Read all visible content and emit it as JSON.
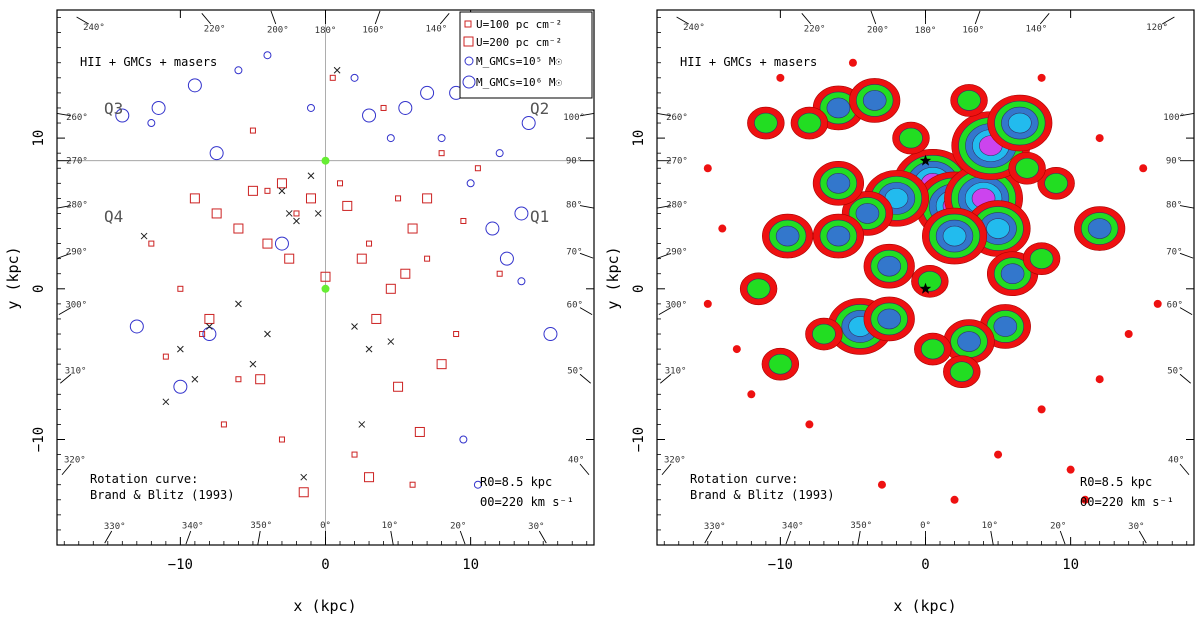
{
  "chart_data": [
    {
      "type": "scatter",
      "xlabel": "x (kpc)",
      "ylabel": "y (kpc)",
      "xlim": [
        -18.5,
        18.5
      ],
      "ylim": [
        -17,
        18.5
      ],
      "xticks": [
        -10,
        0,
        10
      ],
      "yticks": [
        -10,
        0,
        10
      ],
      "annotation_top": "HII + GMCs + masers",
      "quadrants": [
        "Q1",
        "Q2",
        "Q3",
        "Q4"
      ],
      "rotation_curve": [
        "Rotation curve:",
        "Brand & Blitz (1993)"
      ],
      "params": [
        "R0=8.5 kpc",
        "Θ0=220 km s⁻¹"
      ],
      "sun": {
        "x": 0,
        "y": 8.5
      },
      "galactic_center": {
        "x": 0,
        "y": 0
      },
      "longitude_labels": [
        "240°",
        "220°",
        "200°",
        "180°",
        "160°",
        "140°",
        "120°",
        "100°",
        "90°",
        "80°",
        "70°",
        "60°",
        "50°",
        "40°",
        "30°",
        "20°",
        "10°",
        "0°",
        "350°",
        "340°",
        "330°",
        "320°",
        "310°",
        "300°",
        "290°",
        "280°",
        "270°",
        "260°"
      ],
      "legend": {
        "position": "top-right",
        "entries": [
          "U=100 pc cm⁻²",
          "U=200 pc cm⁻²",
          "M_GMCs=10⁵ M☉",
          "M_GMCs=10⁶ M☉"
        ]
      },
      "series": [
        {
          "name": "U=200 pc cm⁻²",
          "marker": "square",
          "color": "#cc2222",
          "x": [
            -9,
            -7.5,
            -6,
            -5,
            -4,
            -3,
            -2.5,
            -1,
            0,
            1.5,
            2.5,
            3.5,
            4.5,
            5.5,
            6,
            7,
            8,
            -8,
            -4.5,
            6.5,
            5,
            3,
            -1.5
          ],
          "y": [
            6,
            5,
            4,
            6.5,
            3,
            7,
            2,
            6,
            0.8,
            5.5,
            2,
            -2,
            0,
            1,
            4,
            6,
            -5,
            -2,
            -6,
            -9.5,
            -6.5,
            -12.5,
            -13.5
          ]
        },
        {
          "name": "U=100 pc cm⁻²",
          "marker": "square",
          "color": "#cc2222",
          "x": [
            -12,
            -10,
            -8.5,
            -6,
            -4,
            -2,
            1,
            3,
            5,
            7,
            9,
            10.5,
            12,
            -11,
            -7,
            -3,
            2,
            6,
            9.5,
            -5,
            4,
            8,
            0.5
          ],
          "y": [
            3,
            0,
            -3,
            -6,
            6.5,
            5,
            7,
            3,
            6,
            2,
            -3,
            8,
            1,
            -4.5,
            -9,
            -10,
            -11,
            -13,
            4.5,
            10.5,
            12,
            9,
            14
          ]
        },
        {
          "name": "M_GMCs=10⁶ M☉",
          "marker": "circle",
          "color": "#3333cc",
          "x": [
            -14,
            -11.5,
            -9,
            -7.5,
            -3,
            3,
            5.5,
            7,
            9,
            11.5,
            12.5,
            14,
            -13,
            -10,
            -8,
            15.5,
            13.5
          ],
          "y": [
            11.5,
            12,
            13.5,
            9,
            3,
            11.5,
            12,
            13,
            13,
            4,
            2,
            11,
            -2.5,
            -6.5,
            -3,
            -3,
            5
          ]
        },
        {
          "name": "M_GMCs=10⁵ M☉",
          "marker": "circle",
          "color": "#3333cc",
          "x": [
            -12,
            -6,
            -4,
            -1,
            2,
            4.5,
            8,
            10,
            12,
            13.5,
            9.5,
            10.5
          ],
          "y": [
            11,
            14.5,
            15.5,
            12,
            14,
            10,
            10,
            7,
            9,
            0.5,
            -10,
            -13
          ]
        },
        {
          "name": "masers",
          "marker": "x",
          "color": "#222222",
          "x": [
            -11,
            -10,
            -8,
            -6,
            -5,
            -4,
            -3,
            -2.5,
            -2,
            -1,
            -0.5,
            2,
            3,
            4.5,
            -9,
            -12.5,
            -1.5,
            2.5,
            0.8
          ],
          "y": [
            -7.5,
            -4,
            -2.5,
            -1,
            -5,
            -3,
            6.5,
            5,
            4.5,
            7.5,
            5,
            -2.5,
            -4,
            -3.5,
            -6,
            3.5,
            -12.5,
            -9,
            14.5
          ]
        }
      ]
    },
    {
      "type": "heatmap",
      "xlabel": "x (kpc)",
      "ylabel": "y (kpc)",
      "xlim": [
        -18.5,
        18.5
      ],
      "ylim": [
        -17,
        18.5
      ],
      "xticks": [
        -10,
        0,
        10
      ],
      "yticks": [
        -10,
        0,
        10
      ],
      "annotation_top": "HII + GMCs + masers",
      "rotation_curve": [
        "Rotation curve:",
        "Brand & Blitz (1993)"
      ],
      "params": [
        "R0=8.5 kpc",
        "Θ0=220 km s⁻¹"
      ],
      "sun": {
        "x": 0,
        "y": 8.5
      },
      "galactic_center": {
        "x": 0,
        "y": 0
      },
      "contour_colors": [
        "#ee1111",
        "#22dd22",
        "#3377cc",
        "#22bbee",
        "#cc44ee"
      ],
      "blobs": [
        {
          "x": 0.5,
          "y": 7,
          "level": 5
        },
        {
          "x": 2,
          "y": 5.5,
          "level": 5
        },
        {
          "x": 4,
          "y": 6,
          "level": 5
        },
        {
          "x": -2,
          "y": 6,
          "level": 4
        },
        {
          "x": 4.5,
          "y": 9.5,
          "level": 5
        },
        {
          "x": 6.5,
          "y": 11,
          "level": 4
        },
        {
          "x": 5,
          "y": 4,
          "level": 4
        },
        {
          "x": 6,
          "y": 1,
          "level": 3
        },
        {
          "x": 5.5,
          "y": -2.5,
          "level": 3
        },
        {
          "x": 3,
          "y": -3.5,
          "level": 3
        },
        {
          "x": -4.5,
          "y": -2.5,
          "level": 4
        },
        {
          "x": -2.5,
          "y": -2,
          "level": 3
        },
        {
          "x": -4,
          "y": 5,
          "level": 3
        },
        {
          "x": -6,
          "y": 3.5,
          "level": 3
        },
        {
          "x": -9.5,
          "y": 3.5,
          "level": 3
        },
        {
          "x": -11.5,
          "y": 0,
          "level": 2
        },
        {
          "x": -10,
          "y": -5,
          "level": 2
        },
        {
          "x": 12,
          "y": 4,
          "level": 3
        },
        {
          "x": 9,
          "y": 7,
          "level": 2
        },
        {
          "x": -6,
          "y": 12,
          "level": 3
        },
        {
          "x": -3.5,
          "y": 12.5,
          "level": 3
        },
        {
          "x": -8,
          "y": 11,
          "level": 2
        },
        {
          "x": -11,
          "y": 11,
          "level": 2
        },
        {
          "x": 2,
          "y": 3.5,
          "level": 4
        },
        {
          "x": 0.3,
          "y": 0.5,
          "level": 2
        },
        {
          "x": -2.5,
          "y": 1.5,
          "level": 3
        },
        {
          "x": 8,
          "y": 2,
          "level": 2
        },
        {
          "x": 0.5,
          "y": -4,
          "level": 2
        },
        {
          "x": 2.5,
          "y": -5.5,
          "level": 2
        },
        {
          "x": -7,
          "y": -3,
          "level": 2
        },
        {
          "x": -6,
          "y": 7,
          "level": 3
        },
        {
          "x": 7,
          "y": 8,
          "level": 2
        },
        {
          "x": -1,
          "y": 10,
          "level": 2
        },
        {
          "x": 3,
          "y": 12.5,
          "level": 2
        }
      ]
    }
  ]
}
